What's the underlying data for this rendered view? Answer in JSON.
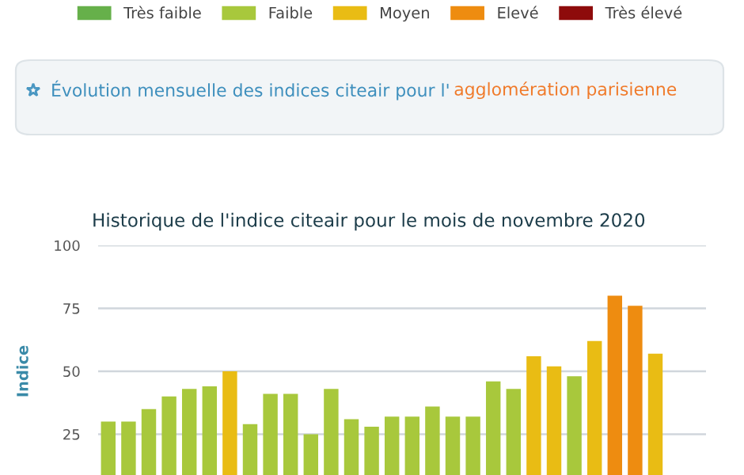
{
  "chart_data": {
    "type": "bar",
    "title": "Historique de l'indice citeair pour le mois de novembre 2020",
    "annotations": [
      "Évolution mensuelle des indices citeair pour l'",
      "agglomération parisienne"
    ],
    "ylabel": "Indice",
    "categories": [
      null,
      null,
      null,
      null,
      null,
      null,
      null,
      null,
      null,
      null,
      null,
      null,
      null,
      null,
      null,
      null,
      null,
      null,
      null,
      null,
      null,
      null,
      null,
      null,
      null,
      null,
      null,
      null,
      null,
      null
    ],
    "series": [
      {
        "name": "Très faible",
        "color": "#66b04a",
        "values": [
          null,
          null,
          null,
          null,
          null,
          null,
          null,
          null,
          null,
          null,
          null,
          null,
          null,
          null,
          null,
          null,
          null,
          null,
          null,
          null,
          null,
          null,
          null,
          null,
          null,
          null,
          null,
          null,
          null,
          null
        ]
      },
      {
        "name": "Faible",
        "color": "#a8c83c",
        "values": [
          30,
          30,
          35,
          40,
          43,
          44,
          null,
          29,
          41,
          41,
          25,
          43,
          31,
          28,
          32,
          32,
          36,
          32,
          32,
          46,
          43,
          null,
          null,
          48,
          null,
          null,
          null,
          null,
          null,
          null
        ]
      },
      {
        "name": "Moyen",
        "color": "#e9bc14",
        "values": [
          null,
          null,
          null,
          null,
          null,
          null,
          50,
          null,
          null,
          null,
          null,
          null,
          null,
          null,
          null,
          null,
          null,
          null,
          null,
          null,
          null,
          56,
          52,
          null,
          62,
          null,
          null,
          57,
          null,
          null
        ]
      },
      {
        "name": "Elevé",
        "color": "#ee8c10",
        "values": [
          null,
          null,
          null,
          null,
          null,
          null,
          null,
          null,
          null,
          null,
          null,
          null,
          null,
          null,
          null,
          null,
          null,
          null,
          null,
          null,
          null,
          null,
          null,
          null,
          null,
          80,
          76,
          null,
          null,
          null
        ]
      },
      {
        "name": "Très élevé",
        "color": "#8e0b0b",
        "values": [
          null,
          null,
          null,
          null,
          null,
          null,
          null,
          null,
          null,
          null,
          null,
          null,
          null,
          null,
          null,
          null,
          null,
          null,
          null,
          null,
          null,
          null,
          null,
          null,
          null,
          null,
          null,
          null,
          null,
          null
        ]
      }
    ],
    "ylim": [
      0,
      100
    ],
    "yticks": [
      25,
      50,
      75,
      100
    ],
    "grid": "y",
    "legend": "top"
  }
}
